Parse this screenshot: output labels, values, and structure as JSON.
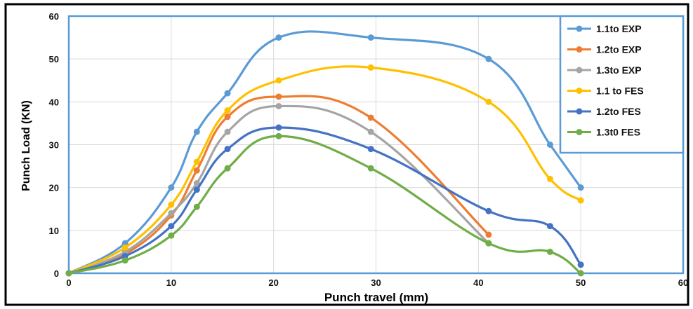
{
  "chart_data": {
    "type": "line",
    "xlabel": "Punch travel (mm)",
    "ylabel": "Punch Load (KN)",
    "xlim": [
      0,
      60
    ],
    "ylim": [
      0,
      60
    ],
    "x_ticks": [
      "0",
      "10",
      "20",
      "30",
      "40",
      "50",
      "60"
    ],
    "y_ticks": [
      "0",
      "10",
      "20",
      "30",
      "40",
      "50",
      "60"
    ],
    "grid": "vertical and horizontal",
    "legend_position": "top-right",
    "series": [
      {
        "name": "1.1to EXP",
        "color": "#5b9bd5",
        "x": [
          0,
          5.5,
          10,
          12.5,
          15.5,
          20.5,
          29.5,
          41,
          47,
          50
        ],
        "y": [
          0,
          7,
          20,
          33,
          42,
          55,
          55,
          50,
          30,
          20
        ]
      },
      {
        "name": "1.2to EXP",
        "color": "#ed7d31",
        "x": [
          0,
          5.5,
          10,
          12.5,
          15.5,
          20.5,
          29.5,
          41
        ],
        "y": [
          0,
          4.5,
          13.5,
          24,
          36.5,
          41.2,
          36.3,
          9
        ]
      },
      {
        "name": "1.3to EXP",
        "color": "#a5a5a5",
        "x": [
          0,
          5.5,
          10,
          12.5,
          15.5,
          20.5,
          29.5,
          41
        ],
        "y": [
          0,
          5,
          14,
          21,
          33,
          39,
          33,
          7
        ]
      },
      {
        "name": "1.1 to FES",
        "color": "#ffc000",
        "x": [
          0,
          5.5,
          10,
          12.5,
          15.5,
          20.5,
          29.5,
          41,
          47,
          50
        ],
        "y": [
          0,
          6,
          16,
          26,
          38,
          45,
          48,
          40,
          22,
          17
        ]
      },
      {
        "name": "1.2to FES",
        "color": "#4472c4",
        "x": [
          0,
          5.5,
          10,
          12.5,
          15.5,
          20.5,
          29.5,
          41,
          47,
          50
        ],
        "y": [
          0,
          4,
          11,
          19.5,
          29,
          34,
          29,
          14.5,
          11,
          2
        ]
      },
      {
        "name": "1.3t0 FES",
        "color": "#70ad47",
        "x": [
          0,
          5.5,
          10,
          12.5,
          15.5,
          20.5,
          29.5,
          41,
          47,
          50
        ],
        "y": [
          0,
          3,
          8.8,
          15.5,
          24.5,
          32,
          24.5,
          7,
          5,
          0
        ]
      }
    ]
  }
}
